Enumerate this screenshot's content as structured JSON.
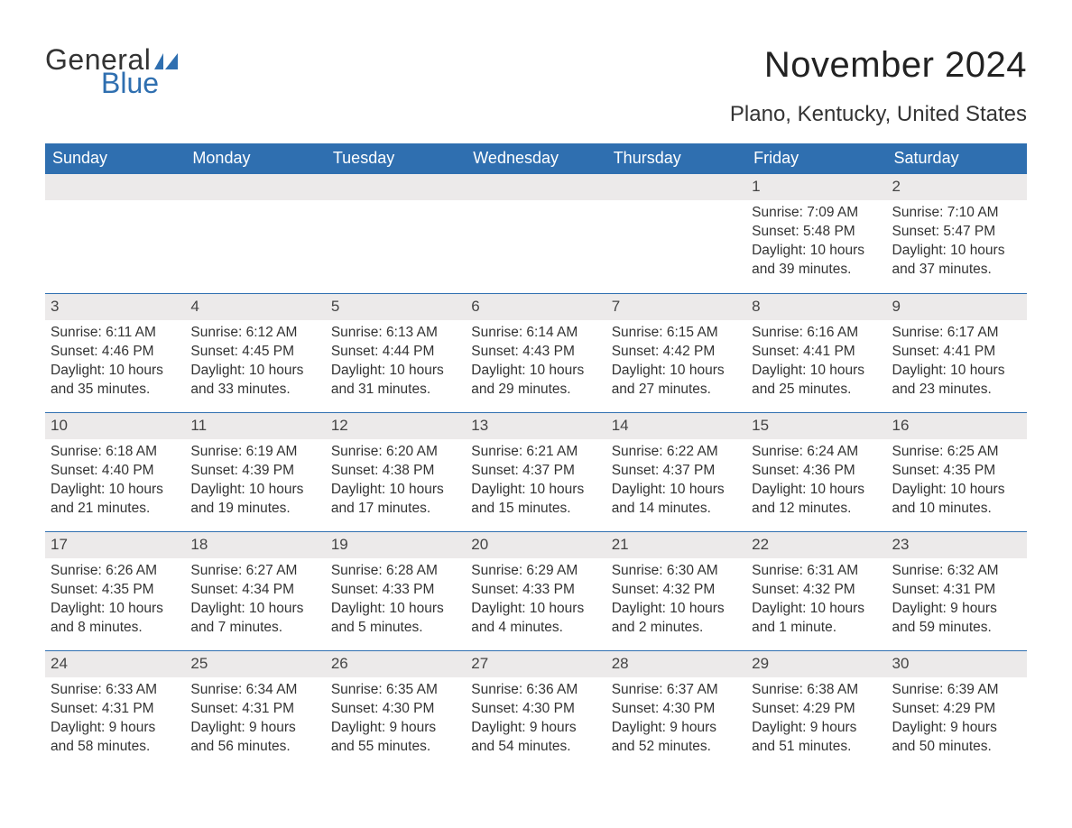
{
  "brand": {
    "word1": "General",
    "word2": "Blue",
    "mark_color": "#2f6fb0",
    "text_color_dark": "#333333",
    "text_color_blue": "#2f6fb0"
  },
  "title": "November 2024",
  "location": "Plano, Kentucky, United States",
  "colors": {
    "header_bg": "#2f6fb0",
    "header_text": "#ffffff",
    "daynum_bg": "#eceaea",
    "week_border": "#2f6fb0",
    "body_text": "#333333",
    "page_bg": "#ffffff"
  },
  "typography": {
    "title_fontsize": 40,
    "location_fontsize": 24,
    "weekday_fontsize": 18,
    "daynum_fontsize": 17,
    "body_fontsize": 15.5,
    "font_family": "Arial"
  },
  "weekdays": [
    "Sunday",
    "Monday",
    "Tuesday",
    "Wednesday",
    "Thursday",
    "Friday",
    "Saturday"
  ],
  "weeks": [
    [
      {
        "empty": true
      },
      {
        "empty": true
      },
      {
        "empty": true
      },
      {
        "empty": true
      },
      {
        "empty": true
      },
      {
        "day": "1",
        "sunrise": "Sunrise: 7:09 AM",
        "sunset": "Sunset: 5:48 PM",
        "daylight1": "Daylight: 10 hours",
        "daylight2": "and 39 minutes."
      },
      {
        "day": "2",
        "sunrise": "Sunrise: 7:10 AM",
        "sunset": "Sunset: 5:47 PM",
        "daylight1": "Daylight: 10 hours",
        "daylight2": "and 37 minutes."
      }
    ],
    [
      {
        "day": "3",
        "sunrise": "Sunrise: 6:11 AM",
        "sunset": "Sunset: 4:46 PM",
        "daylight1": "Daylight: 10 hours",
        "daylight2": "and 35 minutes."
      },
      {
        "day": "4",
        "sunrise": "Sunrise: 6:12 AM",
        "sunset": "Sunset: 4:45 PM",
        "daylight1": "Daylight: 10 hours",
        "daylight2": "and 33 minutes."
      },
      {
        "day": "5",
        "sunrise": "Sunrise: 6:13 AM",
        "sunset": "Sunset: 4:44 PM",
        "daylight1": "Daylight: 10 hours",
        "daylight2": "and 31 minutes."
      },
      {
        "day": "6",
        "sunrise": "Sunrise: 6:14 AM",
        "sunset": "Sunset: 4:43 PM",
        "daylight1": "Daylight: 10 hours",
        "daylight2": "and 29 minutes."
      },
      {
        "day": "7",
        "sunrise": "Sunrise: 6:15 AM",
        "sunset": "Sunset: 4:42 PM",
        "daylight1": "Daylight: 10 hours",
        "daylight2": "and 27 minutes."
      },
      {
        "day": "8",
        "sunrise": "Sunrise: 6:16 AM",
        "sunset": "Sunset: 4:41 PM",
        "daylight1": "Daylight: 10 hours",
        "daylight2": "and 25 minutes."
      },
      {
        "day": "9",
        "sunrise": "Sunrise: 6:17 AM",
        "sunset": "Sunset: 4:41 PM",
        "daylight1": "Daylight: 10 hours",
        "daylight2": "and 23 minutes."
      }
    ],
    [
      {
        "day": "10",
        "sunrise": "Sunrise: 6:18 AM",
        "sunset": "Sunset: 4:40 PM",
        "daylight1": "Daylight: 10 hours",
        "daylight2": "and 21 minutes."
      },
      {
        "day": "11",
        "sunrise": "Sunrise: 6:19 AM",
        "sunset": "Sunset: 4:39 PM",
        "daylight1": "Daylight: 10 hours",
        "daylight2": "and 19 minutes."
      },
      {
        "day": "12",
        "sunrise": "Sunrise: 6:20 AM",
        "sunset": "Sunset: 4:38 PM",
        "daylight1": "Daylight: 10 hours",
        "daylight2": "and 17 minutes."
      },
      {
        "day": "13",
        "sunrise": "Sunrise: 6:21 AM",
        "sunset": "Sunset: 4:37 PM",
        "daylight1": "Daylight: 10 hours",
        "daylight2": "and 15 minutes."
      },
      {
        "day": "14",
        "sunrise": "Sunrise: 6:22 AM",
        "sunset": "Sunset: 4:37 PM",
        "daylight1": "Daylight: 10 hours",
        "daylight2": "and 14 minutes."
      },
      {
        "day": "15",
        "sunrise": "Sunrise: 6:24 AM",
        "sunset": "Sunset: 4:36 PM",
        "daylight1": "Daylight: 10 hours",
        "daylight2": "and 12 minutes."
      },
      {
        "day": "16",
        "sunrise": "Sunrise: 6:25 AM",
        "sunset": "Sunset: 4:35 PM",
        "daylight1": "Daylight: 10 hours",
        "daylight2": "and 10 minutes."
      }
    ],
    [
      {
        "day": "17",
        "sunrise": "Sunrise: 6:26 AM",
        "sunset": "Sunset: 4:35 PM",
        "daylight1": "Daylight: 10 hours",
        "daylight2": "and 8 minutes."
      },
      {
        "day": "18",
        "sunrise": "Sunrise: 6:27 AM",
        "sunset": "Sunset: 4:34 PM",
        "daylight1": "Daylight: 10 hours",
        "daylight2": "and 7 minutes."
      },
      {
        "day": "19",
        "sunrise": "Sunrise: 6:28 AM",
        "sunset": "Sunset: 4:33 PM",
        "daylight1": "Daylight: 10 hours",
        "daylight2": "and 5 minutes."
      },
      {
        "day": "20",
        "sunrise": "Sunrise: 6:29 AM",
        "sunset": "Sunset: 4:33 PM",
        "daylight1": "Daylight: 10 hours",
        "daylight2": "and 4 minutes."
      },
      {
        "day": "21",
        "sunrise": "Sunrise: 6:30 AM",
        "sunset": "Sunset: 4:32 PM",
        "daylight1": "Daylight: 10 hours",
        "daylight2": "and 2 minutes."
      },
      {
        "day": "22",
        "sunrise": "Sunrise: 6:31 AM",
        "sunset": "Sunset: 4:32 PM",
        "daylight1": "Daylight: 10 hours",
        "daylight2": "and 1 minute."
      },
      {
        "day": "23",
        "sunrise": "Sunrise: 6:32 AM",
        "sunset": "Sunset: 4:31 PM",
        "daylight1": "Daylight: 9 hours",
        "daylight2": "and 59 minutes."
      }
    ],
    [
      {
        "day": "24",
        "sunrise": "Sunrise: 6:33 AM",
        "sunset": "Sunset: 4:31 PM",
        "daylight1": "Daylight: 9 hours",
        "daylight2": "and 58 minutes."
      },
      {
        "day": "25",
        "sunrise": "Sunrise: 6:34 AM",
        "sunset": "Sunset: 4:31 PM",
        "daylight1": "Daylight: 9 hours",
        "daylight2": "and 56 minutes."
      },
      {
        "day": "26",
        "sunrise": "Sunrise: 6:35 AM",
        "sunset": "Sunset: 4:30 PM",
        "daylight1": "Daylight: 9 hours",
        "daylight2": "and 55 minutes."
      },
      {
        "day": "27",
        "sunrise": "Sunrise: 6:36 AM",
        "sunset": "Sunset: 4:30 PM",
        "daylight1": "Daylight: 9 hours",
        "daylight2": "and 54 minutes."
      },
      {
        "day": "28",
        "sunrise": "Sunrise: 6:37 AM",
        "sunset": "Sunset: 4:30 PM",
        "daylight1": "Daylight: 9 hours",
        "daylight2": "and 52 minutes."
      },
      {
        "day": "29",
        "sunrise": "Sunrise: 6:38 AM",
        "sunset": "Sunset: 4:29 PM",
        "daylight1": "Daylight: 9 hours",
        "daylight2": "and 51 minutes."
      },
      {
        "day": "30",
        "sunrise": "Sunrise: 6:39 AM",
        "sunset": "Sunset: 4:29 PM",
        "daylight1": "Daylight: 9 hours",
        "daylight2": "and 50 minutes."
      }
    ]
  ]
}
